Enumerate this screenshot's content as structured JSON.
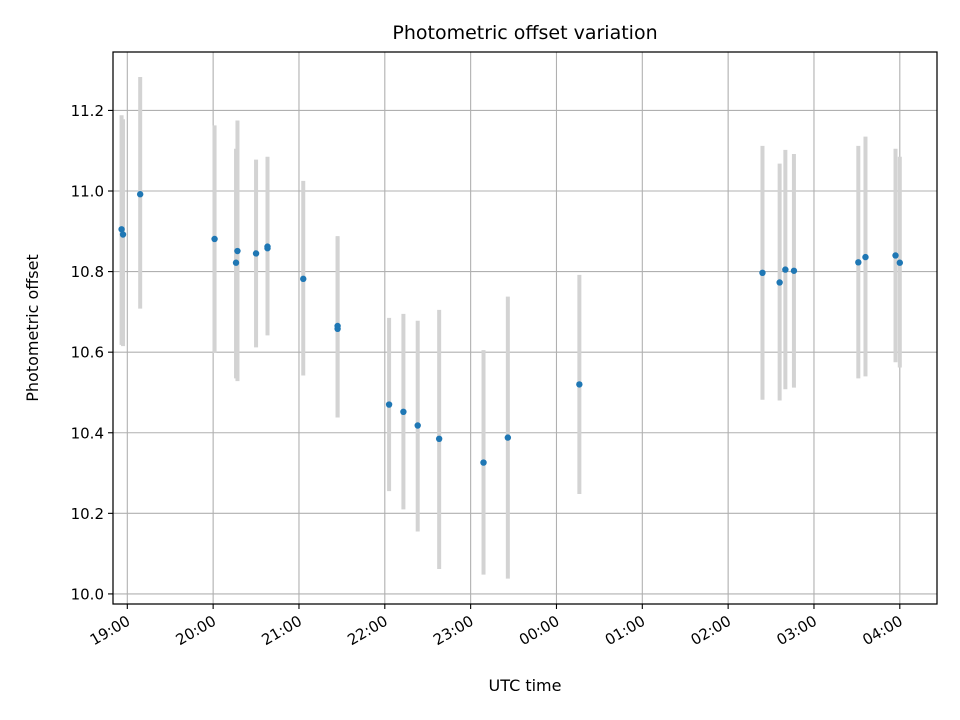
{
  "chart_data": {
    "type": "scatter",
    "title": "Photometric offset variation",
    "xlabel": "UTC time",
    "ylabel": "Photometric offset",
    "x_axis_kind": "time",
    "xlim": [
      "18:50",
      "04:26"
    ],
    "ylim": [
      9.975,
      11.345
    ],
    "grid": true,
    "x_ticks": [
      "19:00",
      "20:00",
      "21:00",
      "22:00",
      "23:00",
      "00:00",
      "01:00",
      "02:00",
      "03:00",
      "04:00"
    ],
    "y_ticks": [
      "10.0",
      "10.2",
      "10.4",
      "10.6",
      "10.8",
      "11.0",
      "11.2"
    ],
    "colors": {
      "point": "#1f77b4",
      "errorbar": "#d3d3d3",
      "grid": "#b0b0b0"
    },
    "series": [
      {
        "points": [
          {
            "time": "18:56",
            "y": 10.905,
            "err_low": 10.618,
            "err_high": 11.188
          },
          {
            "time": "18:57",
            "y": 10.892,
            "err_low": 10.615,
            "err_high": 11.178
          },
          {
            "time": "19:09",
            "y": 10.992,
            "err_low": 10.708,
            "err_high": 11.283
          },
          {
            "time": "20:01",
            "y": 10.881,
            "err_low": 10.598,
            "err_high": 11.163
          },
          {
            "time": "20:16",
            "y": 10.822,
            "err_low": 10.535,
            "err_high": 11.105
          },
          {
            "time": "20:17",
            "y": 10.851,
            "err_low": 10.528,
            "err_high": 11.175
          },
          {
            "time": "20:30",
            "y": 10.845,
            "err_low": 10.612,
            "err_high": 11.078
          },
          {
            "time": "20:38",
            "y": 10.858,
            "err_low": 10.642,
            "err_high": 11.078
          },
          {
            "time": "20:38",
            "y": 10.862,
            "err_low": 10.642,
            "err_high": 11.085
          },
          {
            "time": "21:03",
            "y": 10.782,
            "err_low": 10.542,
            "err_high": 11.025
          },
          {
            "time": "21:27",
            "y": 10.665,
            "err_low": 10.438,
            "err_high": 10.888
          },
          {
            "time": "21:27",
            "y": 10.658,
            "err_low": 10.438,
            "err_high": 10.885
          },
          {
            "time": "22:03",
            "y": 10.47,
            "err_low": 10.255,
            "err_high": 10.685
          },
          {
            "time": "22:13",
            "y": 10.452,
            "err_low": 10.21,
            "err_high": 10.695
          },
          {
            "time": "22:23",
            "y": 10.418,
            "err_low": 10.155,
            "err_high": 10.678
          },
          {
            "time": "22:38",
            "y": 10.385,
            "err_low": 10.062,
            "err_high": 10.705
          },
          {
            "time": "23:09",
            "y": 10.326,
            "err_low": 10.048,
            "err_high": 10.605
          },
          {
            "time": "23:26",
            "y": 10.388,
            "err_low": 10.038,
            "err_high": 10.738
          },
          {
            "time": "00:16",
            "y": 10.52,
            "err_low": 10.248,
            "err_high": 10.792
          },
          {
            "time": "02:24",
            "y": 10.797,
            "err_low": 10.482,
            "err_high": 11.112
          },
          {
            "time": "02:36",
            "y": 10.773,
            "err_low": 10.48,
            "err_high": 11.068
          },
          {
            "time": "02:40",
            "y": 10.805,
            "err_low": 10.508,
            "err_high": 11.102
          },
          {
            "time": "02:46",
            "y": 10.802,
            "err_low": 10.512,
            "err_high": 11.092
          },
          {
            "time": "03:31",
            "y": 10.823,
            "err_low": 10.535,
            "err_high": 11.112
          },
          {
            "time": "03:36",
            "y": 10.836,
            "err_low": 10.54,
            "err_high": 11.135
          },
          {
            "time": "03:57",
            "y": 10.84,
            "err_low": 10.575,
            "err_high": 11.105
          },
          {
            "time": "04:00",
            "y": 10.822,
            "err_low": 10.562,
            "err_high": 11.085
          }
        ]
      }
    ]
  }
}
